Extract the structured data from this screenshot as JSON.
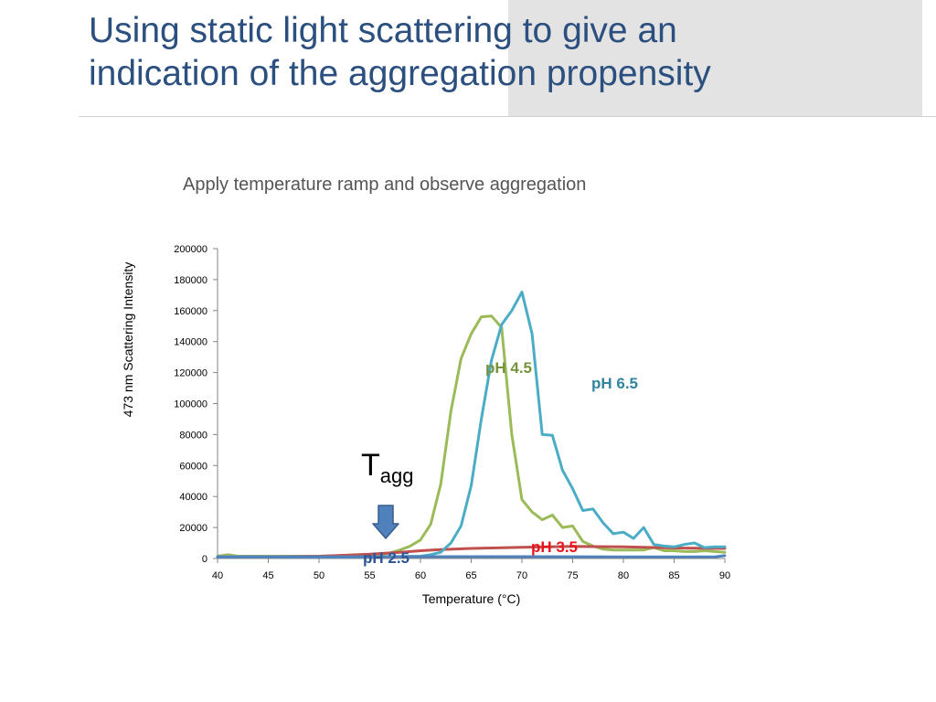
{
  "slide": {
    "title_line1": "Using static light scattering to give an",
    "title_line2": "indication of the aggregation propensity",
    "subtitle": "Apply temperature ramp and observe aggregation"
  },
  "annotation": {
    "tagg_main": "T",
    "tagg_sub": "agg",
    "arrow_color": "#4f81bd"
  },
  "chart_data": {
    "type": "line",
    "xlabel": "Temperature (°C)",
    "ylabel": "473 nm Scattering Intensity",
    "xlim": [
      40,
      90
    ],
    "ylim": [
      0,
      200000
    ],
    "xticks": [
      40,
      45,
      50,
      55,
      60,
      65,
      70,
      75,
      80,
      85,
      90
    ],
    "yticks": [
      0,
      20000,
      40000,
      60000,
      80000,
      100000,
      120000,
      140000,
      160000,
      180000,
      200000
    ],
    "grid": false,
    "series": [
      {
        "name": "pH 2.5",
        "color": "#4f81bd",
        "label_color": "#2f5597",
        "x": [
          40,
          50,
          60,
          70,
          80,
          89,
          90
        ],
        "y": [
          1000,
          1000,
          1200,
          1200,
          1000,
          1000,
          1800
        ]
      },
      {
        "name": "pH 3.5",
        "color": "#c0504d",
        "label_color": "#e8121b",
        "x": [
          40,
          45,
          50,
          55,
          58,
          60,
          62,
          65,
          70,
          75,
          80,
          85,
          90
        ],
        "y": [
          1000,
          1000,
          1500,
          2800,
          4000,
          5000,
          5800,
          6500,
          7200,
          7800,
          7500,
          6800,
          6500
        ]
      },
      {
        "name": "pH 4.5",
        "color": "#9bbb59",
        "label_color": "#77933c",
        "x": [
          40,
          41,
          42,
          45,
          50,
          55,
          56,
          57,
          58,
          59,
          60,
          61,
          62,
          63,
          64,
          65,
          66,
          67,
          68,
          69,
          70,
          71,
          72,
          73,
          74,
          75,
          76,
          77,
          78,
          79,
          80,
          81,
          82,
          83,
          84,
          85,
          86,
          87,
          88,
          89,
          90
        ],
        "y": [
          1500,
          2500,
          1500,
          1500,
          1500,
          2000,
          2500,
          3500,
          5500,
          8000,
          12000,
          22000,
          48000,
          95000,
          129000,
          145000,
          156000,
          156500,
          149000,
          80000,
          38000,
          30000,
          25000,
          28000,
          20000,
          21000,
          11000,
          8000,
          6000,
          5500,
          5500,
          5500,
          5500,
          7000,
          5000,
          5000,
          4500,
          4500,
          5000,
          4500,
          4000
        ]
      },
      {
        "name": "pH 6.5",
        "color": "#4bacc6",
        "label_color": "#31859c",
        "x": [
          40,
          45,
          50,
          55,
          60,
          61,
          62,
          63,
          64,
          65,
          66,
          67,
          68,
          69,
          70,
          71,
          72,
          73,
          74,
          75,
          76,
          77,
          78,
          79,
          80,
          81,
          82,
          83,
          84,
          85,
          86,
          87,
          88,
          89,
          90
        ],
        "y": [
          1000,
          1000,
          1000,
          1000,
          1500,
          2500,
          4000,
          10000,
          21000,
          47000,
          90000,
          128000,
          151000,
          160000,
          172000,
          145000,
          80000,
          79500,
          57000,
          45000,
          31000,
          32000,
          23000,
          16000,
          17000,
          13000,
          20000,
          9000,
          8000,
          7500,
          9000,
          10000,
          7000,
          7500,
          7500
        ]
      }
    ]
  }
}
